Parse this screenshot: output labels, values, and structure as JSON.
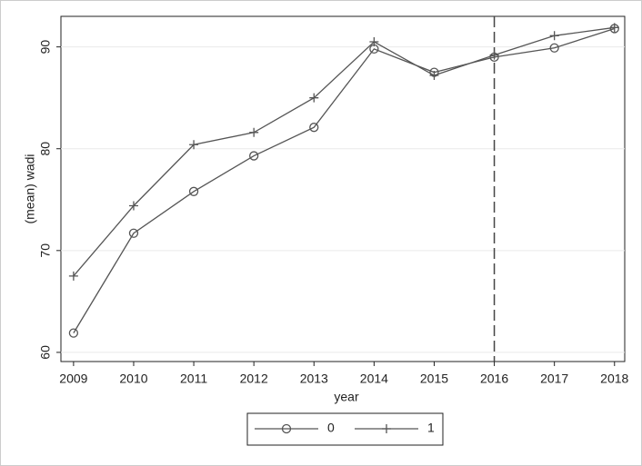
{
  "chart_data": {
    "type": "line",
    "x_label": "year",
    "y_label": "(mean) wadi",
    "x": [
      2009,
      2010,
      2011,
      2012,
      2013,
      2014,
      2015,
      2016,
      2017,
      2018
    ],
    "series": [
      {
        "name": "0",
        "color": "#555555",
        "marker": "circle",
        "values": [
          61.9,
          71.7,
          75.8,
          79.3,
          82.1,
          89.8,
          87.5,
          89.0,
          89.9,
          91.8
        ]
      },
      {
        "name": "1",
        "color": "#555555",
        "marker": "plus",
        "values": [
          67.5,
          74.4,
          80.4,
          81.6,
          85.0,
          90.5,
          87.2,
          89.2,
          91.1,
          91.9
        ]
      }
    ],
    "xlim": [
      2008.79,
      2018.17
    ],
    "xticks": [
      2009,
      2010,
      2011,
      2012,
      2013,
      2014,
      2015,
      2016,
      2017,
      2018
    ],
    "ylim": [
      59.1,
      93.0
    ],
    "yticks": [
      60,
      70,
      80,
      90
    ],
    "xline": 2016,
    "grid": true,
    "legend": "bottom"
  }
}
